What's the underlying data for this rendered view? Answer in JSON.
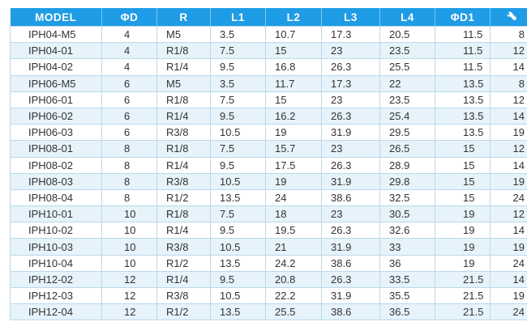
{
  "headers": [
    "MODEL",
    "ΦD",
    "R",
    "L1",
    "L2",
    "L3",
    "L4",
    "ΦD1"
  ],
  "wrench_icon": "wrench-icon",
  "colors": {
    "header_bg": "#1e9ce6",
    "row_alt": "#e6f3fb"
  },
  "rows": [
    [
      "IPH04-M5",
      "4",
      "M5",
      "3.5",
      "10.7",
      "17.3",
      "20.5",
      "11.5",
      "8"
    ],
    [
      "IPH04-01",
      "4",
      "R1/8",
      "7.5",
      "15",
      "23",
      "23.5",
      "11.5",
      "12"
    ],
    [
      "IPH04-02",
      "4",
      "R1/4",
      "9.5",
      "16.8",
      "26.3",
      "25.5",
      "11.5",
      "14"
    ],
    [
      "IPH06-M5",
      "6",
      "M5",
      "3.5",
      "11.7",
      "17.3",
      "22",
      "13.5",
      "8"
    ],
    [
      "IPH06-01",
      "6",
      "R1/8",
      "7.5",
      "15",
      "23",
      "23.5",
      "13.5",
      "12"
    ],
    [
      "IPH06-02",
      "6",
      "R1/4",
      "9.5",
      "16.2",
      "26.3",
      "25.4",
      "13.5",
      "14"
    ],
    [
      "IPH06-03",
      "6",
      "R3/8",
      "10.5",
      "19",
      "31.9",
      "29.5",
      "13.5",
      "19"
    ],
    [
      "IPH08-01",
      "8",
      "R1/8",
      "7.5",
      "15.7",
      "23",
      "26.5",
      "15",
      "12"
    ],
    [
      "IPH08-02",
      "8",
      "R1/4",
      "9.5",
      "17.5",
      "26.3",
      "28.9",
      "15",
      "14"
    ],
    [
      "IPH08-03",
      "8",
      "R3/8",
      "10.5",
      "19",
      "31.9",
      "29.8",
      "15",
      "19"
    ],
    [
      "IPH08-04",
      "8",
      "R1/2",
      "13.5",
      "24",
      "38.6",
      "32.5",
      "15",
      "24"
    ],
    [
      "IPH10-01",
      "10",
      "R1/8",
      "7.5",
      "18",
      "23",
      "30.5",
      "19",
      "12"
    ],
    [
      "IPH10-02",
      "10",
      "R1/4",
      "9.5",
      "19.5",
      "26.3",
      "32.6",
      "19",
      "14"
    ],
    [
      "IPH10-03",
      "10",
      "R3/8",
      "10.5",
      "21",
      "31.9",
      "33",
      "19",
      "19"
    ],
    [
      "IPH10-04",
      "10",
      "R1/2",
      "13.5",
      "24.2",
      "38.6",
      "36",
      "19",
      "24"
    ],
    [
      "IPH12-02",
      "12",
      "R1/4",
      "9.5",
      "20.8",
      "26.3",
      "33.5",
      "21.5",
      "14"
    ],
    [
      "IPH12-03",
      "12",
      "R3/8",
      "10.5",
      "22.2",
      "31.9",
      "35.5",
      "21.5",
      "19"
    ],
    [
      "IPH12-04",
      "12",
      "R1/2",
      "13.5",
      "25.5",
      "38.6",
      "36.5",
      "21.5",
      "24"
    ]
  ]
}
